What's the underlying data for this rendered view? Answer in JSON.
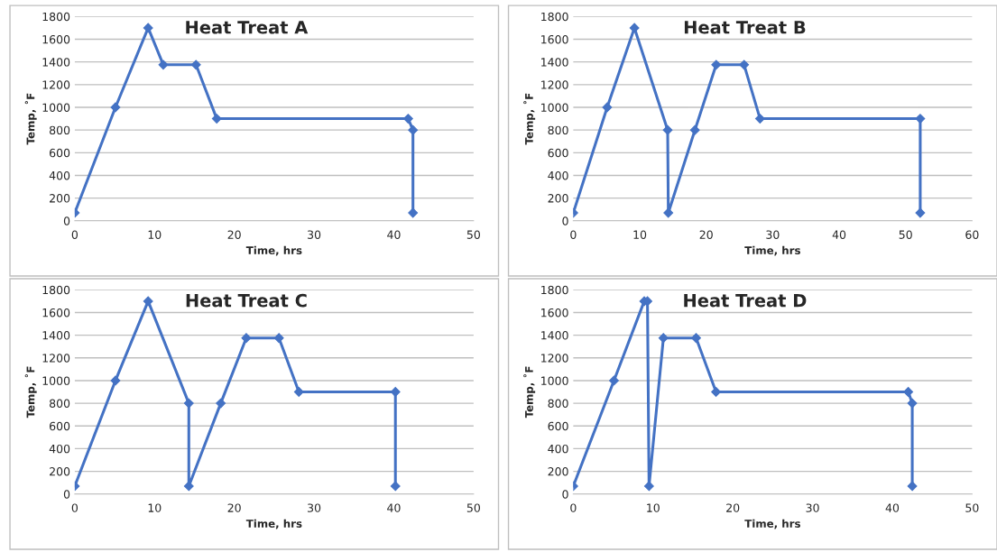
{
  "chart_data": [
    {
      "type": "line",
      "title": "Heat Treat A",
      "xlabel": "Time, hrs",
      "ylabel": "Temp, ˚F",
      "xlim": [
        0,
        50
      ],
      "xticks": [
        0,
        10,
        20,
        30,
        40,
        50
      ],
      "ylim": [
        0,
        1800
      ],
      "yticks": [
        0,
        200,
        400,
        600,
        800,
        1000,
        1200,
        1400,
        1600,
        1800
      ],
      "grid": "y",
      "marker": "diamond",
      "series": [
        {
          "color": "#4472c4",
          "x": [
            0,
            5.1,
            9.2,
            11.1,
            15.2,
            17.8,
            41.8,
            42.4,
            42.4
          ],
          "values": [
            70,
            1000,
            1700,
            1375,
            1375,
            900,
            900,
            800,
            70
          ]
        }
      ]
    },
    {
      "type": "line",
      "title": "Heat Treat B",
      "xlabel": "Time, hrs",
      "ylabel": "Temp, ˚F",
      "xlim": [
        0,
        60
      ],
      "xticks": [
        0,
        10,
        20,
        30,
        40,
        50,
        60
      ],
      "ylim": [
        0,
        1800
      ],
      "yticks": [
        0,
        200,
        400,
        600,
        800,
        1000,
        1200,
        1400,
        1600,
        1800
      ],
      "grid": "y",
      "marker": "diamond",
      "series": [
        {
          "color": "#4472c4",
          "x": [
            0,
            5.1,
            9.2,
            14.2,
            14.3,
            18.3,
            21.5,
            25.7,
            28.1,
            52.2,
            52.2
          ],
          "values": [
            70,
            1000,
            1700,
            800,
            70,
            800,
            1375,
            1375,
            900,
            900,
            70
          ]
        }
      ]
    },
    {
      "type": "line",
      "title": "Heat Treat C",
      "xlabel": "Time, hrs",
      "ylabel": "Temp, ˚F",
      "xlim": [
        0,
        50
      ],
      "xticks": [
        0,
        10,
        20,
        30,
        40,
        50
      ],
      "ylim": [
        0,
        1800
      ],
      "yticks": [
        0,
        200,
        400,
        600,
        800,
        1000,
        1200,
        1400,
        1600,
        1800
      ],
      "grid": "y",
      "marker": "diamond",
      "series": [
        {
          "color": "#4472c4",
          "x": [
            0,
            5.1,
            9.2,
            14.3,
            14.3,
            18.3,
            21.5,
            25.6,
            28.1,
            40.2,
            40.2
          ],
          "values": [
            70,
            1000,
            1700,
            800,
            70,
            800,
            1375,
            1375,
            900,
            900,
            70
          ]
        }
      ]
    },
    {
      "type": "line",
      "title": "Heat Treat D",
      "xlabel": "Time, hrs",
      "ylabel": "Temp, ˚F",
      "xlim": [
        0,
        50
      ],
      "xticks": [
        0,
        10,
        20,
        30,
        40,
        50
      ],
      "ylim": [
        0,
        1800
      ],
      "yticks": [
        0,
        200,
        400,
        600,
        800,
        1000,
        1200,
        1400,
        1600,
        1800
      ],
      "grid": "y",
      "marker": "diamond",
      "series": [
        {
          "color": "#4472c4",
          "x": [
            0,
            5.1,
            8.9,
            9.3,
            9.5,
            11.3,
            15.4,
            17.9,
            42.0,
            42.5,
            42.5
          ],
          "values": [
            70,
            1000,
            1700,
            1700,
            70,
            1375,
            1375,
            900,
            900,
            800,
            70
          ]
        }
      ]
    }
  ]
}
